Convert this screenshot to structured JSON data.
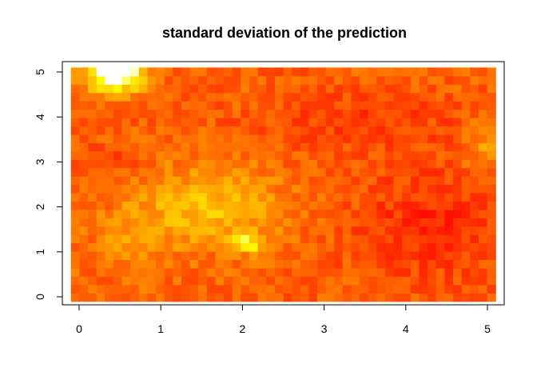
{
  "chart_data": {
    "type": "heatmap",
    "title": "standard deviation of the prediction",
    "xlabel": "",
    "ylabel": "",
    "xlim": [
      0,
      5
    ],
    "ylim": [
      0,
      5
    ],
    "x_ticks": [
      "0",
      "1",
      "2",
      "3",
      "4",
      "5"
    ],
    "y_ticks": [
      "0",
      "1",
      "2",
      "3",
      "4",
      "5"
    ],
    "grid": false,
    "legend": "none",
    "color_scale": {
      "name": "heat",
      "low": "#FF0000",
      "mid": "#FF8000",
      "high": "#FFFF00",
      "max": "#FFFFFF"
    },
    "grid_size": [
      50,
      28
    ],
    "features": [
      {
        "x": 0.45,
        "y": 4.9,
        "level": "high",
        "note_value": 1.0
      },
      {
        "x": 2.05,
        "y": 1.2,
        "level": "high",
        "note_value": 0.95
      },
      {
        "x": 1.3,
        "y": 2.3,
        "level": "medium-high",
        "note_value": 0.7
      }
    ]
  }
}
